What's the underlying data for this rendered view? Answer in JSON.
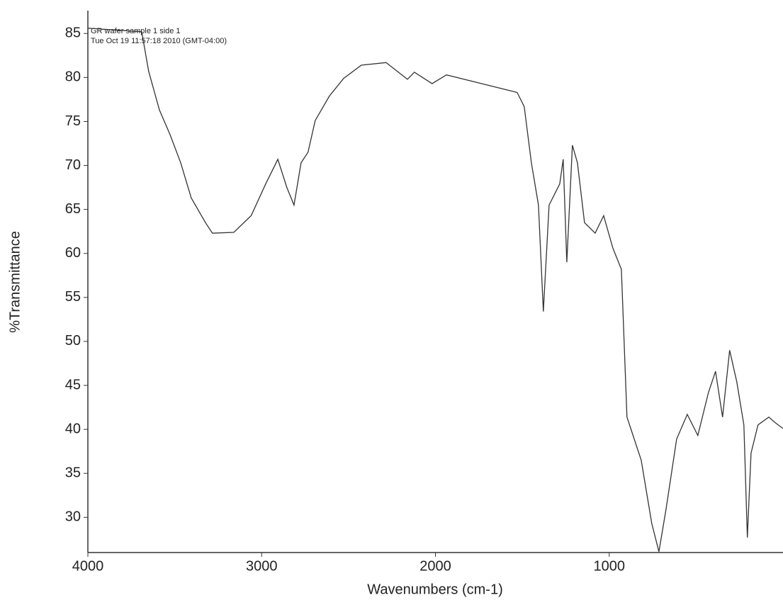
{
  "chart_data": {
    "type": "line",
    "annotations": [
      "GR wafer sample 1 side 1",
      "Tue Oct 19 11:57:18 2010 (GMT-04:00)"
    ],
    "x_label": "Wavenumbers (cm-1)",
    "y_label": "%Transmittance",
    "xlim": [
      4000,
      0
    ],
    "ylim": [
      26,
      87.6
    ],
    "xticks": [
      4000,
      3000,
      2000,
      1000
    ],
    "yticks": [
      30,
      35,
      40,
      45,
      50,
      55,
      60,
      65,
      70,
      75,
      80,
      85
    ],
    "color": "#333333",
    "x": [
      4000,
      3690,
      3650,
      3588,
      3527,
      3466,
      3405,
      3323,
      3283,
      3160,
      3060,
      2977,
      2907,
      2855,
      2814,
      2773,
      2733,
      2692,
      2610,
      2528,
      2426,
      2284,
      2161,
      2121,
      2019,
      1937,
      1733,
      1530,
      1489,
      1448,
      1407,
      1379,
      1346,
      1285,
      1265,
      1244,
      1212,
      1183,
      1142,
      1081,
      1032,
      979,
      930,
      898,
      816,
      755,
      714,
      673,
      612,
      551,
      490,
      429,
      388,
      348,
      307,
      266,
      225,
      205,
      184,
      144,
      82,
      41,
      0
    ],
    "values": [
      85.6,
      85.2,
      80.7,
      76.3,
      73.5,
      70.3,
      66.3,
      63.5,
      62.3,
      62.4,
      64.3,
      67.9,
      70.7,
      67.5,
      65.5,
      70.3,
      71.5,
      75.1,
      77.9,
      79.9,
      81.4,
      81.7,
      79.8,
      80.6,
      79.3,
      80.3,
      79.3,
      78.3,
      76.7,
      70.3,
      65.5,
      53.4,
      65.5,
      67.9,
      70.7,
      59.0,
      72.3,
      70.3,
      63.5,
      62.3,
      64.3,
      60.6,
      58.2,
      41.4,
      36.5,
      29.3,
      26.1,
      30.9,
      38.9,
      41.7,
      39.3,
      44.2,
      46.6,
      41.4,
      49.0,
      45.4,
      40.5,
      27.7,
      37.3,
      40.5,
      41.4,
      40.7,
      40.1
    ]
  }
}
